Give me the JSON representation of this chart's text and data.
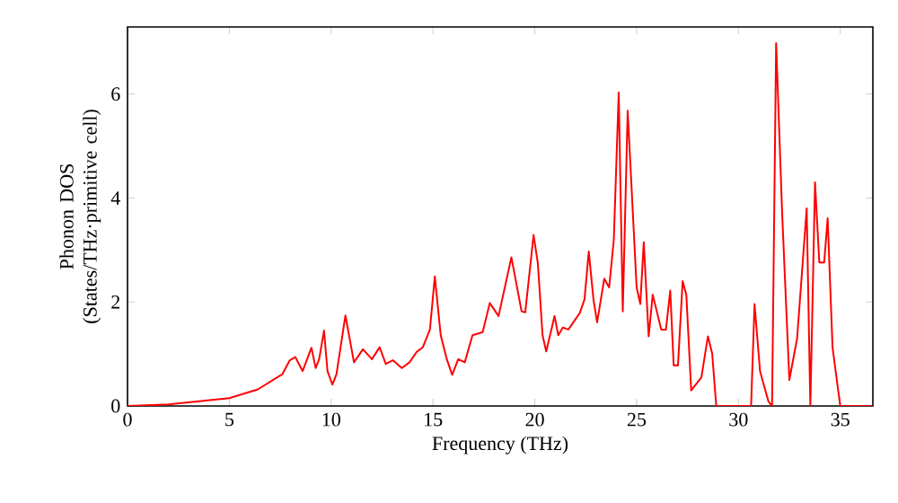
{
  "chart_data": {
    "type": "line",
    "xlabel": "Frequency (THz)",
    "ylabel": "Phonon DOS (States/THz·primitive cell)",
    "xlim": [
      0,
      36.6
    ],
    "ylim": [
      0,
      7.29
    ],
    "xticks": [
      0,
      5,
      10,
      15,
      20,
      25,
      30,
      35
    ],
    "yticks": [
      0,
      2,
      4,
      6
    ],
    "marker": "none",
    "line_style": "solid",
    "series": [
      {
        "color": "#ff0000",
        "x": [
          0,
          2,
          5,
          6.4,
          7.6,
          7.97,
          8.24,
          8.6,
          9.03,
          9.24,
          9.41,
          9.65,
          9.82,
          10.06,
          10.26,
          10.7,
          11.12,
          11.56,
          12.0,
          12.38,
          12.68,
          13.03,
          13.47,
          13.85,
          14.2,
          14.5,
          14.85,
          15.09,
          15.38,
          15.68,
          15.94,
          16.24,
          16.56,
          16.94,
          17.44,
          17.79,
          18.22,
          18.85,
          19.35,
          19.53,
          19.94,
          20.15,
          20.38,
          20.56,
          20.97,
          21.15,
          21.38,
          21.65,
          22.21,
          22.44,
          22.65,
          22.88,
          23.06,
          23.41,
          23.65,
          23.88,
          24.12,
          24.32,
          24.56,
          25.0,
          25.18,
          25.35,
          25.59,
          25.79,
          26.21,
          26.44,
          26.65,
          26.82,
          27.03,
          27.26,
          27.44,
          27.68,
          28.18,
          28.5,
          28.71,
          28.91,
          30.62,
          30.79,
          31.06,
          31.47,
          31.65,
          31.85,
          32.15,
          32.5,
          32.88,
          33.35,
          33.53,
          33.76,
          33.97,
          34.21,
          34.38,
          34.62,
          34.88,
          35.0,
          36.56
        ],
        "values": [
          0,
          0.03,
          0.15,
          0.32,
          0.61,
          0.88,
          0.94,
          0.67,
          1.12,
          0.73,
          0.9,
          1.45,
          0.67,
          0.41,
          0.61,
          1.74,
          0.84,
          1.09,
          0.9,
          1.13,
          0.81,
          0.88,
          0.73,
          0.84,
          1.04,
          1.13,
          1.47,
          2.49,
          1.36,
          0.9,
          0.6,
          0.9,
          0.84,
          1.36,
          1.42,
          1.98,
          1.73,
          2.86,
          1.82,
          1.8,
          3.29,
          2.74,
          1.36,
          1.05,
          1.73,
          1.36,
          1.51,
          1.47,
          1.79,
          2.05,
          2.97,
          2.05,
          1.61,
          2.45,
          2.28,
          3.2,
          6.03,
          1.82,
          5.68,
          2.28,
          1.96,
          3.15,
          1.34,
          2.14,
          1.47,
          1.47,
          2.22,
          0.78,
          0.78,
          2.4,
          2.14,
          0.3,
          0.55,
          1.34,
          1.01,
          0,
          0,
          1.96,
          0.67,
          0.09,
          0,
          6.98,
          3.66,
          0.5,
          1.3,
          3.8,
          0,
          4.3,
          2.76,
          2.76,
          3.61,
          1.13,
          0.35,
          0,
          0
        ]
      }
    ]
  }
}
